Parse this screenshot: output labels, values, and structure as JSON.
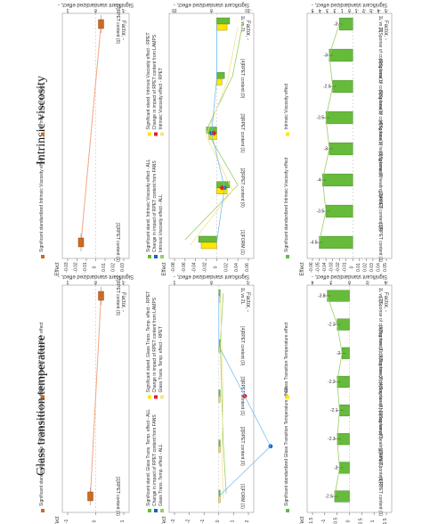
{
  "headings": {
    "glass": "Glass transition temperature",
    "intrinsic": "Intrinsic viscosity"
  },
  "colors": {
    "orange": "#d2691e",
    "green": "#66bb3a",
    "yellow": "#ffe600",
    "blue": "#1565c0",
    "red": "#d62728",
    "line_orange": "#f4a582",
    "line_green": "#9ccc65",
    "line_blue": "#64b5f6",
    "line_yellow": "#f0e68c"
  },
  "chart_data": [
    {
      "id": "glass-top",
      "type": "line",
      "x_label": "Effect",
      "y_label": "Significant standardized effect, -",
      "factor_label": "Factor, -",
      "categories": [
        "[1]RPET content (1)",
        "[2]RPET content (0)"
      ],
      "effect_ticks": [
        -1,
        0,
        1
      ],
      "sig_ticks": [
        -1,
        0,
        1
      ],
      "series": [
        {
          "name": "Glass Transition Temperature effect",
          "values": [
            0.0,
            0.0
          ],
          "marker": "line-orange"
        },
        {
          "name": "Significant standardized Glass Transition Temperature effect",
          "values": [
            0.0,
            0.0
          ],
          "marker": "box-orange"
        }
      ],
      "legend": [
        "Significant standardized Glass Transition Temperature effect",
        "Glass Transition Temperature effect"
      ]
    },
    {
      "id": "intrinsic-top",
      "type": "line",
      "x_label": "Effect",
      "y_label": "Significant standardized effect, -",
      "factor_label": "Factor, -",
      "categories": [
        "[1]RPET content (1)",
        "[2]RPET content (0)"
      ],
      "effect_ticks": [
        -0.03,
        -0.02,
        -0.01,
        0,
        0.01,
        0.02,
        0.03
      ],
      "sig_ticks": [
        -1,
        0,
        1
      ],
      "series": [
        {
          "name": "Intrinsic Viscosity effect",
          "values": [
            -0.01,
            0.0
          ],
          "marker": "line-orange"
        },
        {
          "name": "Significant standardized Intrinsic Viscosity effect",
          "values": [
            -0.01,
            0.0
          ],
          "marker": "box-orange"
        }
      ],
      "legend": [
        "Significant standardized Intrinsic Viscosity effect",
        "Intrinsic Viscosity effect"
      ]
    },
    {
      "id": "glass-mid",
      "type": "bar",
      "x_label": "Effect",
      "y_label": "Significant standardized effect, -",
      "factor_label": "Factor, -",
      "categories": [
        "[1]FORM (1)",
        "[2]RPET content (0)",
        "[3]RPET content (1)",
        "[4]RPET content (0)",
        "1L vs 2L"
      ],
      "effect_ticks": [
        -3,
        -2,
        -1,
        0,
        1,
        2
      ],
      "sig_ticks": [
        -1,
        0,
        1
      ],
      "series": [
        {
          "name": "Significant stand. Glass Trans. Temp. effect - ALL",
          "values": [
            0.0,
            0.0,
            0.0,
            0.0,
            0.0
          ]
        },
        {
          "name": "Significant stand. Glass Trans. Temp. effect - RPET",
          "values": [
            0.0,
            0.0,
            0.0,
            0.0,
            0.0
          ]
        },
        {
          "name": "Change in impact of RPET content from FANS",
          "values": [
            0.0,
            0.2,
            0.1,
            0.0,
            0.0
          ]
        },
        {
          "name": "Change in impact of RPET content from LAMPS",
          "values": [
            0.0,
            0.0,
            0.1,
            0.0,
            0.0
          ]
        },
        {
          "name": "Glass Trans. Temp. effect - ALL",
          "values": [
            0.5,
            0.3,
            0.2,
            0.1,
            0.3
          ]
        },
        {
          "name": "Glass Trans. Temp. effect - RPET",
          "values": [
            0.3,
            0.2,
            0.3,
            0.2,
            0.1
          ]
        }
      ],
      "legend": [
        "Significant stand. Glass Trans. Temp. effect - ALL",
        "Significant stand. Glass Trans. Temp. effect - RPET",
        "Change in impact of RPET content from FANS",
        "Change in impact of RPET content from LAMPS",
        "Glass Trans. Temp. effect - ALL",
        "Glass Trans. Temp. effect - RPET"
      ]
    },
    {
      "id": "intrinsic-mid",
      "type": "bar",
      "x_label": "Effect",
      "y_label": "Significant standardized effect, -",
      "factor_label": "Factor, -",
      "categories": [
        "[1]FORM (1)",
        "[2]RPET content (0)",
        "[3]RPET content (1)",
        "[4]RPET content (0)",
        "1L vs 2L"
      ],
      "effect_ticks": [
        -0.08,
        -0.06,
        -0.04,
        -0.02,
        0,
        0.02,
        0.04,
        0.06
      ],
      "sig_ticks": [
        -10,
        0,
        10
      ],
      "series": [
        {
          "name": "Significant stand. Intrinsic Viscosity effect - ALL",
          "values": [
            -7,
            5,
            -4,
            3,
            5
          ]
        },
        {
          "name": "Significant stand. Intrinsic Viscosity effect - RPET",
          "values": [
            -6,
            4,
            -3,
            2,
            4
          ]
        },
        {
          "name": "Change in impact of RPET content from FANS",
          "values": [
            0,
            0.3,
            -0.2,
            0,
            0
          ]
        },
        {
          "name": "Change in impact of RPET content from LAMPS",
          "values": [
            0,
            0.2,
            -0.1,
            0,
            0
          ]
        },
        {
          "name": "Intrinsic Viscosity effect - ALL",
          "values": [
            -0.06,
            0.04,
            -0.02,
            0.03,
            0.05
          ]
        },
        {
          "name": "Intrinsic Viscosity effect - RPET",
          "values": [
            -0.05,
            0.03,
            -0.02,
            0.02,
            0.04
          ]
        }
      ],
      "legend": [
        "Significant stand. Intrinsic Viscosity effect - ALL",
        "Significant stand. Intrinsic Viscosity effect - RPET",
        "Change in impact of RPET content from FANS",
        "Change in impact of RPET content from LAMPS",
        "Intrinsic Viscosity effect - ALL",
        "Intrinsic Viscosity effect - RPET"
      ]
    },
    {
      "id": "glass-bottom",
      "type": "bar",
      "x_label": "Effect",
      "y_label": "Significant standardized effect, -",
      "factor_label": "Factor, -",
      "categories": [
        "[1]RPET content (1)",
        "[2]RPET content (0)",
        "[3]Sponse of heating lamp(1)",
        "[4]Sponse of heating lamp(0)",
        "[5]Sponse of cooling fans(1)",
        "[6]Sponse of cooling fans(0)",
        "[7]Sponse of cooling fans(1)",
        "1L vs 2L"
      ],
      "effect_ticks": [
        -1.5,
        -1,
        -0.5,
        0,
        0.5,
        1,
        1.5
      ],
      "sig_ticks": [
        -4,
        -2,
        0,
        2,
        4
      ],
      "series": [
        {
          "name": "Significant standardized Glass Transition Temperature effect",
          "values": [
            -2.5,
            -2.0,
            -2.3,
            -2.1,
            -2.2,
            -2.0,
            -2.3,
            -3.8
          ]
        },
        {
          "name": "Glass Transition Temperature effect",
          "values": [
            -0.6,
            -0.4,
            -0.5,
            -0.4,
            -0.5,
            -0.3,
            -0.5,
            -0.9
          ]
        }
      ],
      "legend": [
        "Significant standardized Glass Transition Temperature effect",
        "Glass Transition Temperature effect"
      ]
    },
    {
      "id": "intrinsic-bottom",
      "type": "bar",
      "x_label": "Effect",
      "y_label": "Significant standardized effect, -",
      "factor_label": "Factor, -",
      "categories": [
        "[1]RPET content (1)",
        "[2]RPET content (0)",
        "[3]Sponse of heating lamp(1)",
        "[4]Sponse of heating lamp(0)",
        "[5]Sponse of cooling fans(1)",
        "[6]Sponse of cooling fans(0)",
        "[7]Sponse of cooling fans(1)",
        "1L vs 2L"
      ],
      "effect_ticks": [
        -0.06,
        -0.05,
        -0.04,
        -0.03,
        -0.02,
        -0.01,
        0,
        0.01,
        0.02,
        0.03,
        0.04,
        0.05
      ],
      "sig_ticks": [
        -5,
        -4,
        -3,
        -2,
        -1,
        0,
        1,
        2,
        3,
        4,
        5
      ],
      "series": [
        {
          "name": "Significant standardized Intrinsic Viscosity effect",
          "values": [
            -4.5,
            -3.5,
            -4.0,
            -3.0,
            -3.5,
            -2.5,
            -3.0,
            -2.0
          ]
        },
        {
          "name": "Intrinsic Viscosity effect",
          "values": [
            -0.05,
            -0.04,
            -0.045,
            -0.035,
            -0.04,
            -0.03,
            -0.035,
            -0.02
          ]
        }
      ],
      "legend": [
        "Significant standardized Intrinsic Viscosity effect",
        "Intrinsic Viscosity effect"
      ]
    }
  ]
}
